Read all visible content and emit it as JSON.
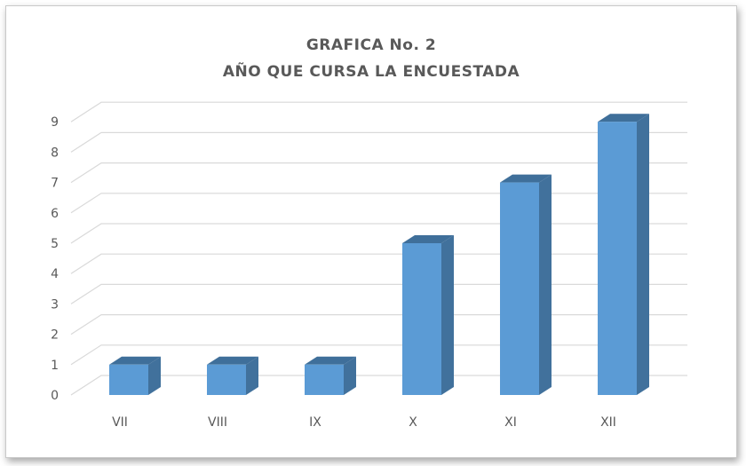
{
  "chart_data": {
    "type": "bar",
    "title": "GRAFICA No. 2",
    "subtitle": "AÑO QUE CURSA LA ENCUESTADA",
    "categories": [
      "VII",
      "VIII",
      "IX",
      "X",
      "XI",
      "XII"
    ],
    "values": [
      1,
      1,
      1,
      5,
      7,
      9
    ],
    "ylim": [
      0,
      9
    ],
    "yticks": [
      0,
      1,
      2,
      3,
      4,
      5,
      6,
      7,
      8,
      9
    ],
    "grid": true,
    "style": "3d-column",
    "colors": {
      "bar_front": "#5b9bd5",
      "bar_side": "#41719c",
      "bar_top": "#3f6f9a",
      "grid": "#d9d9d9"
    }
  }
}
